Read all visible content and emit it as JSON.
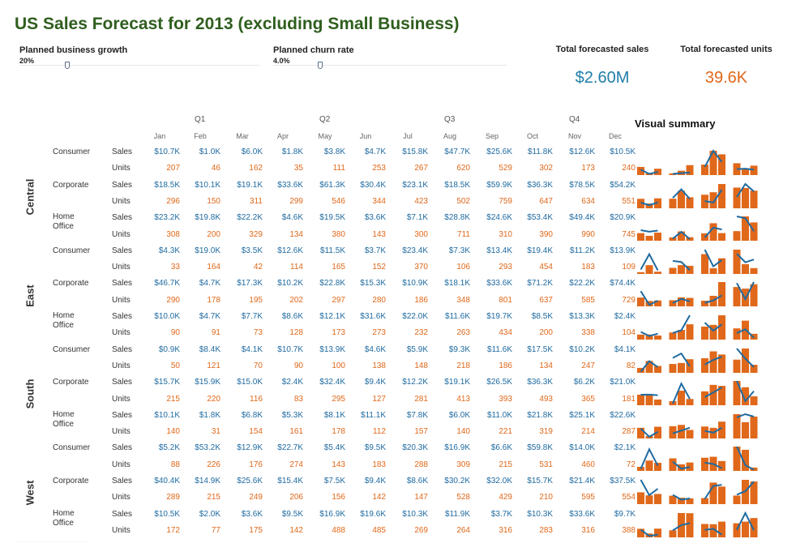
{
  "title": "US Sales Forecast for 2013 (excluding Small Business)",
  "parameters": [
    {
      "label": "Planned business growth",
      "value": "20%",
      "slider_fraction": 0.2
    },
    {
      "label": "Planned churn rate",
      "value": "4.0%",
      "slider_fraction": 0.2
    }
  ],
  "kpis": [
    {
      "label": "Total forecasted sales",
      "value": "$2.60M",
      "color": "#1f7ea8"
    },
    {
      "label": "Total forecasted units",
      "value": "39.6K",
      "color": "#e0681a"
    }
  ],
  "quarters": [
    "Q1",
    "Q2",
    "Q3",
    "Q4"
  ],
  "months": [
    "Jan",
    "Feb",
    "Mar",
    "Apr",
    "May",
    "Jun",
    "Jul",
    "Aug",
    "Sep",
    "Oct",
    "Nov",
    "Dec"
  ],
  "visual_summary_title": "Visual summary",
  "measures": {
    "sales": "Sales",
    "units": "Units"
  },
  "colors": {
    "sales": "#1f6aa0",
    "units": "#e0681a"
  },
  "regions": [
    {
      "name": "Central",
      "segments": [
        {
          "name": "Consumer",
          "sales": [
            "$10.7K",
            "$1.0K",
            "$6.0K",
            "$1.8K",
            "$3.8K",
            "$4.7K",
            "$15.8K",
            "$47.7K",
            "$25.6K",
            "$11.8K",
            "$12.6K",
            "$10.5K"
          ],
          "units": [
            "207",
            "46",
            "162",
            "35",
            "111",
            "253",
            "267",
            "620",
            "529",
            "302",
            "173",
            "240"
          ]
        },
        {
          "name": "Corporate",
          "sales": [
            "$18.5K",
            "$10.1K",
            "$19.1K",
            "$33.6K",
            "$61.3K",
            "$30.4K",
            "$23.1K",
            "$18.5K",
            "$59.9K",
            "$36.3K",
            "$78.5K",
            "$54.2K"
          ],
          "units": [
            "296",
            "150",
            "311",
            "299",
            "546",
            "344",
            "423",
            "502",
            "759",
            "647",
            "634",
            "551"
          ]
        },
        {
          "name": "Home Office",
          "sales": [
            "$23.2K",
            "$19.8K",
            "$22.2K",
            "$4.6K",
            "$19.5K",
            "$3.6K",
            "$7.1K",
            "$28.8K",
            "$24.6K",
            "$53.4K",
            "$49.4K",
            "$20.9K"
          ],
          "units": [
            "308",
            "200",
            "329",
            "134",
            "380",
            "143",
            "300",
            "711",
            "310",
            "390",
            "990",
            "745"
          ]
        }
      ]
    },
    {
      "name": "East",
      "segments": [
        {
          "name": "Consumer",
          "sales": [
            "$4.3K",
            "$19.0K",
            "$3.5K",
            "$12.6K",
            "$11.5K",
            "$3.7K",
            "$23.4K",
            "$7.3K",
            "$13.4K",
            "$19.4K",
            "$11.2K",
            "$13.9K"
          ],
          "units": [
            "33",
            "164",
            "42",
            "114",
            "165",
            "152",
            "370",
            "106",
            "293",
            "454",
            "183",
            "109"
          ]
        },
        {
          "name": "Corporate",
          "sales": [
            "$46.7K",
            "$4.7K",
            "$17.3K",
            "$10.2K",
            "$22.8K",
            "$15.3K",
            "$10.9K",
            "$18.1K",
            "$33.6K",
            "$71.2K",
            "$22.2K",
            "$74.4K"
          ],
          "units": [
            "290",
            "178",
            "195",
            "202",
            "297",
            "280",
            "186",
            "348",
            "801",
            "637",
            "585",
            "729"
          ]
        },
        {
          "name": "Home Office",
          "sales": [
            "$10.0K",
            "$4.7K",
            "$7.7K",
            "$8.6K",
            "$12.1K",
            "$31.6K",
            "$22.0K",
            "$11.6K",
            "$19.7K",
            "$8.5K",
            "$13.3K",
            "$2.4K"
          ],
          "units": [
            "90",
            "91",
            "73",
            "128",
            "173",
            "273",
            "232",
            "263",
            "434",
            "200",
            "338",
            "104"
          ]
        }
      ]
    },
    {
      "name": "South",
      "segments": [
        {
          "name": "Consumer",
          "sales": [
            "$0.9K",
            "$8.4K",
            "$4.1K",
            "$10.7K",
            "$13.9K",
            "$4.6K",
            "$5.9K",
            "$9.3K",
            "$11.6K",
            "$17.5K",
            "$10.2K",
            "$4.1K"
          ],
          "units": [
            "50",
            "121",
            "70",
            "90",
            "100",
            "138",
            "148",
            "218",
            "186",
            "134",
            "247",
            "82"
          ]
        },
        {
          "name": "Corporate",
          "sales": [
            "$15.7K",
            "$15.9K",
            "$15.0K",
            "$2.4K",
            "$32.4K",
            "$9.4K",
            "$12.2K",
            "$19.1K",
            "$26.5K",
            "$36.3K",
            "$6.2K",
            "$21.0K"
          ],
          "units": [
            "215",
            "220",
            "116",
            "83",
            "295",
            "127",
            "281",
            "413",
            "393",
            "493",
            "365",
            "181"
          ]
        },
        {
          "name": "Home Office",
          "sales": [
            "$10.1K",
            "$1.8K",
            "$6.8K",
            "$5.3K",
            "$8.1K",
            "$11.1K",
            "$7.8K",
            "$6.0K",
            "$11.0K",
            "$21.8K",
            "$25.1K",
            "$22.6K"
          ],
          "units": [
            "140",
            "31",
            "154",
            "161",
            "178",
            "112",
            "157",
            "140",
            "221",
            "319",
            "214",
            "287"
          ]
        }
      ]
    },
    {
      "name": "West",
      "segments": [
        {
          "name": "Consumer",
          "sales": [
            "$5.2K",
            "$53.2K",
            "$12.9K",
            "$22.7K",
            "$5.4K",
            "$9.5K",
            "$20.3K",
            "$16.9K",
            "$6.6K",
            "$59.8K",
            "$14.0K",
            "$2.1K"
          ],
          "units": [
            "88",
            "226",
            "176",
            "274",
            "143",
            "183",
            "288",
            "309",
            "215",
            "531",
            "460",
            "72"
          ]
        },
        {
          "name": "Corporate",
          "sales": [
            "$40.4K",
            "$14.9K",
            "$25.6K",
            "$15.4K",
            "$7.5K",
            "$9.4K",
            "$8.6K",
            "$30.2K",
            "$32.0K",
            "$15.7K",
            "$21.4K",
            "$37.5K"
          ],
          "units": [
            "289",
            "215",
            "249",
            "206",
            "156",
            "142",
            "147",
            "528",
            "429",
            "210",
            "595",
            "554"
          ]
        },
        {
          "name": "Home Office",
          "sales": [
            "$10.5K",
            "$2.0K",
            "$3.6K",
            "$9.5K",
            "$16.9K",
            "$19.6K",
            "$10.3K",
            "$11.9K",
            "$3.7K",
            "$10.3K",
            "$33.6K",
            "$9.7K"
          ],
          "units": [
            "172",
            "77",
            "175",
            "142",
            "488",
            "485",
            "269",
            "264",
            "316",
            "283",
            "316",
            "388"
          ]
        }
      ]
    }
  ]
}
